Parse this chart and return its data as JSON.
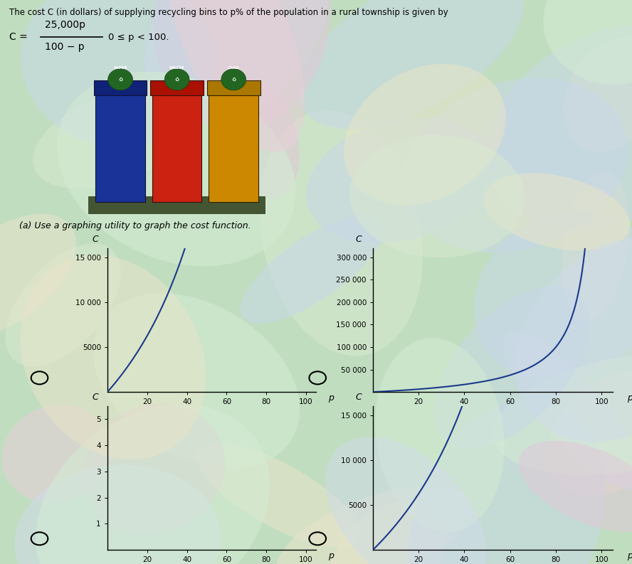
{
  "title_text": "The cost C (in dollars) of supplying recycling bins to p% of the population in a rural township is given by",
  "curve_color": "#1a3a8a",
  "plots": [
    {
      "p_end": 99.3,
      "c_max": 16000,
      "c_ticks": [
        5000,
        10000,
        15000
      ],
      "c_tick_labels": [
        "5000",
        "10 000",
        "15 000"
      ],
      "p_ticks": [
        20,
        40,
        60,
        80,
        100
      ],
      "xlim": [
        0,
        105
      ],
      "ylim": [
        0,
        16000
      ]
    },
    {
      "p_end": 99.97,
      "c_max": 320000,
      "c_ticks": [
        50000,
        100000,
        150000,
        200000,
        250000,
        300000
      ],
      "c_tick_labels": [
        "50 000",
        "100 000",
        "150 000",
        "200 000",
        "250 000",
        "300 000"
      ],
      "p_ticks": [
        20,
        40,
        60,
        80,
        100
      ],
      "xlim": [
        0,
        105
      ],
      "ylim": [
        0,
        320000
      ]
    },
    {
      "p_end": 99.3,
      "c_max": 5.5,
      "c_ticks": [
        1,
        2,
        3,
        4,
        5
      ],
      "c_tick_labels": [
        "1",
        "2",
        "3",
        "4",
        "5"
      ],
      "p_ticks": [
        20,
        40,
        60,
        80,
        100
      ],
      "xlim": [
        0,
        105
      ],
      "ylim": [
        0,
        5.5
      ]
    },
    {
      "p_end": 99.97,
      "c_max": 16000,
      "c_ticks": [
        5000,
        10000,
        15000
      ],
      "c_tick_labels": [
        "5000",
        "10 000",
        "15 000"
      ],
      "p_ticks": [
        20,
        40,
        60,
        80,
        100
      ],
      "xlim": [
        0,
        105
      ],
      "ylim": [
        0,
        16000
      ]
    }
  ],
  "bg_swirl_color": "#b8dfc8",
  "instruction_text": "(a) Use a graphing utility to graph the cost function."
}
